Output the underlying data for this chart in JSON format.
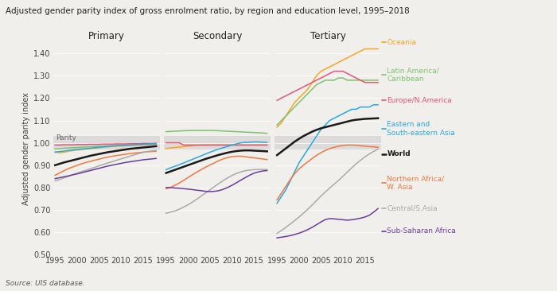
{
  "title": "Adjusted gender parity index of gross enrolment ratio, by region and education level, 1995–2018",
  "ylabel": "Adjusted gender parity index",
  "source": "Source: UIS database.",
  "years": [
    1995,
    1996,
    1997,
    1998,
    1999,
    2000,
    2001,
    2002,
    2003,
    2004,
    2005,
    2006,
    2007,
    2008,
    2009,
    2010,
    2011,
    2012,
    2013,
    2014,
    2015,
    2016,
    2017,
    2018
  ],
  "parity_band": [
    0.97,
    1.03
  ],
  "bg_color": "#f0efeb",
  "panel_bg": "#f0efeb",
  "regions": [
    "Oceania",
    "Latin America/Caribbean",
    "Europe/N.America",
    "Eastern and South-eastern Asia",
    "World",
    "Northern Africa/W. Asia",
    "Central/S.Asia",
    "Sub-Saharan Africa"
  ],
  "colors": {
    "Oceania": "#f5a623",
    "Latin America/Caribbean": "#7dc36b",
    "Europe/N.America": "#e8547a",
    "Eastern and South-eastern Asia": "#29a8e0",
    "World": "#1a1a1a",
    "Northern Africa/W. Asia": "#f07840",
    "Central/S.Asia": "#aaaaaa",
    "Sub-Saharan Africa": "#6a3d9a"
  },
  "primary": {
    "Oceania": [
      0.96,
      0.955,
      0.958,
      0.962,
      0.965,
      0.968,
      0.97,
      0.972,
      0.974,
      0.976,
      0.978,
      0.98,
      0.982,
      0.984,
      0.985,
      0.986,
      0.987,
      0.988,
      0.989,
      0.99,
      0.991,
      0.992,
      0.993,
      0.994
    ],
    "Latin America/Caribbean": [
      0.972,
      0.974,
      0.976,
      0.977,
      0.978,
      0.979,
      0.98,
      0.981,
      0.982,
      0.983,
      0.984,
      0.985,
      0.986,
      0.987,
      0.988,
      0.989,
      0.989,
      0.99,
      0.991,
      0.992,
      0.993,
      0.993,
      0.994,
      0.995
    ],
    "Europe/N.America": [
      0.99,
      0.99,
      0.991,
      0.991,
      0.991,
      0.992,
      0.992,
      0.992,
      0.993,
      0.993,
      0.993,
      0.994,
      0.994,
      0.994,
      0.995,
      0.995,
      0.995,
      0.996,
      0.996,
      0.996,
      0.997,
      0.997,
      0.997,
      0.998
    ],
    "Eastern and South-eastern Asia": [
      0.958,
      0.961,
      0.963,
      0.966,
      0.968,
      0.97,
      0.972,
      0.974,
      0.976,
      0.978,
      0.98,
      0.982,
      0.984,
      0.985,
      0.987,
      0.988,
      0.989,
      0.99,
      0.991,
      0.992,
      0.993,
      0.994,
      0.995,
      0.996
    ],
    "World": [
      0.9,
      0.906,
      0.912,
      0.917,
      0.922,
      0.927,
      0.932,
      0.937,
      0.942,
      0.946,
      0.95,
      0.954,
      0.958,
      0.961,
      0.964,
      0.967,
      0.97,
      0.973,
      0.975,
      0.977,
      0.979,
      0.981,
      0.983,
      0.985
    ],
    "Northern Africa/W. Asia": [
      0.855,
      0.865,
      0.875,
      0.884,
      0.892,
      0.899,
      0.906,
      0.912,
      0.917,
      0.922,
      0.927,
      0.932,
      0.936,
      0.94,
      0.943,
      0.946,
      0.949,
      0.952,
      0.954,
      0.956,
      0.958,
      0.96,
      0.961,
      0.962
    ],
    "Central/S.Asia": [
      0.83,
      0.836,
      0.843,
      0.85,
      0.857,
      0.864,
      0.871,
      0.877,
      0.884,
      0.89,
      0.897,
      0.903,
      0.91,
      0.916,
      0.922,
      0.928,
      0.934,
      0.94,
      0.946,
      0.952,
      0.957,
      0.961,
      0.964,
      0.966
    ],
    "Sub-Saharan Africa": [
      0.84,
      0.844,
      0.848,
      0.852,
      0.857,
      0.861,
      0.866,
      0.871,
      0.876,
      0.881,
      0.886,
      0.891,
      0.896,
      0.9,
      0.904,
      0.908,
      0.912,
      0.915,
      0.918,
      0.921,
      0.924,
      0.926,
      0.928,
      0.93
    ]
  },
  "secondary": {
    "Oceania": [
      0.975,
      0.977,
      0.979,
      0.981,
      0.983,
      0.985,
      0.987,
      0.989,
      0.99,
      0.99,
      0.99,
      0.99,
      0.99,
      0.99,
      0.99,
      0.99,
      0.99,
      0.99,
      0.99,
      0.99,
      0.99,
      0.99,
      0.99,
      0.99
    ],
    "Latin America/Caribbean": [
      1.05,
      1.051,
      1.052,
      1.053,
      1.054,
      1.055,
      1.055,
      1.055,
      1.055,
      1.055,
      1.055,
      1.055,
      1.054,
      1.053,
      1.052,
      1.051,
      1.05,
      1.049,
      1.048,
      1.047,
      1.046,
      1.045,
      1.044,
      1.042
    ],
    "Europe/N.America": [
      1.0,
      1.0,
      1.0,
      1.0,
      0.99,
      0.99,
      0.99,
      0.99,
      0.99,
      0.99,
      0.99,
      0.99,
      0.99,
      0.99,
      0.99,
      0.99,
      0.99,
      0.99,
      0.99,
      0.99,
      0.99,
      0.99,
      0.99,
      0.99
    ],
    "Eastern and South-eastern Asia": [
      0.88,
      0.888,
      0.895,
      0.902,
      0.91,
      0.918,
      0.926,
      0.934,
      0.942,
      0.95,
      0.958,
      0.965,
      0.972,
      0.978,
      0.984,
      0.99,
      0.995,
      1.0,
      1.002,
      1.003,
      1.004,
      1.004,
      1.003,
      1.002
    ],
    "World": [
      0.865,
      0.872,
      0.879,
      0.886,
      0.893,
      0.9,
      0.907,
      0.914,
      0.921,
      0.928,
      0.934,
      0.94,
      0.946,
      0.951,
      0.956,
      0.96,
      0.963,
      0.965,
      0.966,
      0.966,
      0.965,
      0.964,
      0.963,
      0.962
    ],
    "Northern Africa/W. Asia": [
      0.795,
      0.8,
      0.81,
      0.82,
      0.832,
      0.845,
      0.857,
      0.869,
      0.88,
      0.891,
      0.901,
      0.91,
      0.92,
      0.928,
      0.934,
      0.938,
      0.94,
      0.94,
      0.938,
      0.935,
      0.933,
      0.93,
      0.928,
      0.925
    ],
    "Central/S.Asia": [
      0.685,
      0.69,
      0.695,
      0.703,
      0.713,
      0.723,
      0.735,
      0.748,
      0.762,
      0.776,
      0.79,
      0.804,
      0.818,
      0.831,
      0.843,
      0.854,
      0.863,
      0.87,
      0.875,
      0.878,
      0.88,
      0.881,
      0.881,
      0.88
    ],
    "Sub-Saharan Africa": [
      0.8,
      0.8,
      0.798,
      0.797,
      0.795,
      0.793,
      0.791,
      0.788,
      0.786,
      0.783,
      0.782,
      0.783,
      0.786,
      0.792,
      0.8,
      0.81,
      0.821,
      0.833,
      0.844,
      0.855,
      0.864,
      0.87,
      0.874,
      0.876
    ]
  },
  "tertiary": {
    "Oceania": [
      1.07,
      1.09,
      1.12,
      1.15,
      1.18,
      1.2,
      1.22,
      1.24,
      1.27,
      1.3,
      1.32,
      1.33,
      1.34,
      1.35,
      1.36,
      1.37,
      1.38,
      1.39,
      1.4,
      1.41,
      1.42,
      1.42,
      1.42,
      1.42
    ],
    "Latin America/Caribbean": [
      1.08,
      1.1,
      1.12,
      1.14,
      1.16,
      1.18,
      1.2,
      1.22,
      1.24,
      1.26,
      1.27,
      1.28,
      1.28,
      1.28,
      1.29,
      1.29,
      1.28,
      1.28,
      1.28,
      1.28,
      1.28,
      1.28,
      1.28,
      1.28
    ],
    "Europe/N.America": [
      1.19,
      1.2,
      1.21,
      1.22,
      1.23,
      1.24,
      1.25,
      1.26,
      1.27,
      1.28,
      1.29,
      1.3,
      1.31,
      1.32,
      1.32,
      1.32,
      1.31,
      1.3,
      1.29,
      1.28,
      1.27,
      1.27,
      1.27,
      1.27
    ],
    "Eastern and South-eastern Asia": [
      0.73,
      0.76,
      0.79,
      0.83,
      0.87,
      0.91,
      0.94,
      0.97,
      1.0,
      1.03,
      1.06,
      1.08,
      1.1,
      1.11,
      1.12,
      1.13,
      1.14,
      1.15,
      1.15,
      1.16,
      1.16,
      1.16,
      1.17,
      1.17
    ],
    "World": [
      0.945,
      0.96,
      0.975,
      0.99,
      1.005,
      1.018,
      1.03,
      1.04,
      1.05,
      1.058,
      1.065,
      1.07,
      1.075,
      1.08,
      1.085,
      1.09,
      1.095,
      1.1,
      1.103,
      1.105,
      1.107,
      1.108,
      1.109,
      1.11
    ],
    "Northern Africa/W. Asia": [
      0.745,
      0.775,
      0.805,
      0.835,
      0.862,
      0.883,
      0.9,
      0.915,
      0.93,
      0.944,
      0.956,
      0.966,
      0.974,
      0.98,
      0.985,
      0.988,
      0.99,
      0.99,
      0.989,
      0.987,
      0.985,
      0.983,
      0.982,
      0.98
    ],
    "Central/S.Asia": [
      0.595,
      0.608,
      0.622,
      0.637,
      0.652,
      0.668,
      0.685,
      0.703,
      0.722,
      0.742,
      0.762,
      0.78,
      0.798,
      0.815,
      0.832,
      0.85,
      0.869,
      0.888,
      0.906,
      0.922,
      0.937,
      0.95,
      0.962,
      0.972
    ],
    "Sub-Saharan Africa": [
      0.575,
      0.578,
      0.581,
      0.585,
      0.59,
      0.596,
      0.603,
      0.612,
      0.622,
      0.634,
      0.646,
      0.657,
      0.661,
      0.66,
      0.658,
      0.656,
      0.654,
      0.656,
      0.659,
      0.663,
      0.668,
      0.676,
      0.69,
      0.706
    ]
  }
}
